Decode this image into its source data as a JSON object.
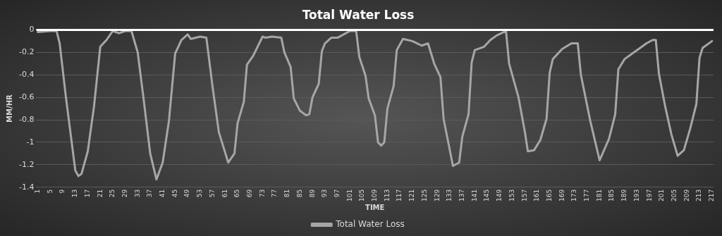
{
  "chart_data": {
    "type": "line",
    "title": "Total Water Loss",
    "xlabel": "TIME",
    "ylabel": "MM/HR",
    "x": [
      1,
      5,
      7,
      8,
      10,
      13,
      14,
      15,
      17,
      19,
      21,
      23,
      25,
      27,
      29,
      31,
      33,
      35,
      37,
      39,
      41,
      43,
      45,
      47,
      49,
      50,
      53,
      55,
      57,
      59,
      62,
      64,
      65,
      67,
      68,
      70,
      73,
      74,
      76,
      79,
      80,
      82,
      83,
      85,
      87,
      88,
      89,
      91,
      92,
      93,
      95,
      97,
      101,
      103,
      104,
      106,
      107,
      109,
      110,
      111,
      112,
      113,
      115,
      116,
      118,
      121,
      124,
      126,
      128,
      130,
      131,
      134,
      136,
      137,
      139,
      140,
      141,
      144,
      146,
      148,
      151,
      152,
      155,
      157,
      158,
      160,
      162,
      164,
      165,
      166,
      169,
      172,
      174,
      175,
      178,
      181,
      184,
      186,
      187,
      189,
      192,
      194,
      196,
      198,
      199,
      200,
      202,
      204,
      206,
      208,
      210,
      212,
      213,
      214,
      217
    ],
    "series": [
      {
        "name": "Total Water Loss",
        "color": "#a6a6a6",
        "values": [
          -0.02,
          -0.01,
          -0.01,
          -0.12,
          -0.6,
          -1.25,
          -1.3,
          -1.28,
          -1.08,
          -0.68,
          -0.15,
          -0.09,
          -0.01,
          -0.03,
          -0.01,
          -0.01,
          -0.2,
          -0.64,
          -1.1,
          -1.33,
          -1.18,
          -0.81,
          -0.21,
          -0.09,
          -0.04,
          -0.08,
          -0.06,
          -0.07,
          -0.51,
          -0.91,
          -1.18,
          -1.1,
          -0.83,
          -0.64,
          -0.31,
          -0.23,
          -0.06,
          -0.07,
          -0.06,
          -0.07,
          -0.2,
          -0.33,
          -0.61,
          -0.72,
          -0.76,
          -0.75,
          -0.6,
          -0.48,
          -0.19,
          -0.12,
          -0.07,
          -0.07,
          -0.01,
          -0.01,
          -0.24,
          -0.41,
          -0.61,
          -0.76,
          -1.0,
          -1.03,
          -1.0,
          -0.7,
          -0.5,
          -0.18,
          -0.08,
          -0.1,
          -0.14,
          -0.12,
          -0.3,
          -0.42,
          -0.79,
          -1.21,
          -1.18,
          -0.95,
          -0.75,
          -0.29,
          -0.18,
          -0.15,
          -0.09,
          -0.05,
          -0.01,
          -0.3,
          -0.6,
          -0.9,
          -1.08,
          -1.07,
          -0.98,
          -0.79,
          -0.38,
          -0.26,
          -0.17,
          -0.12,
          -0.12,
          -0.4,
          -0.81,
          -1.16,
          -0.97,
          -0.75,
          -0.35,
          -0.26,
          -0.2,
          -0.16,
          -0.12,
          -0.09,
          -0.09,
          -0.39,
          -0.68,
          -0.93,
          -1.12,
          -1.07,
          -0.88,
          -0.66,
          -0.25,
          -0.16,
          -0.1
        ]
      }
    ],
    "xlim": [
      0.5,
      217.5
    ],
    "xticks": [
      1,
      5,
      9,
      13,
      17,
      21,
      25,
      29,
      33,
      37,
      41,
      45,
      49,
      53,
      57,
      61,
      65,
      69,
      73,
      77,
      81,
      85,
      89,
      93,
      97,
      101,
      105,
      109,
      113,
      117,
      121,
      125,
      129,
      133,
      137,
      141,
      145,
      149,
      153,
      157,
      161,
      165,
      169,
      173,
      177,
      181,
      185,
      189,
      193,
      197,
      201,
      205,
      209,
      213,
      217
    ],
    "ylim": [
      -1.4,
      0
    ],
    "yticks": [
      -1.4,
      -1.2,
      -1,
      -0.8,
      -0.6,
      -0.4,
      -0.2,
      0
    ],
    "ref_lines": [
      {
        "axis": "y",
        "value": 0,
        "color": "#ffffff"
      }
    ],
    "grid": "y",
    "legend": "bottom",
    "marker": "none",
    "line_style": "solid"
  }
}
